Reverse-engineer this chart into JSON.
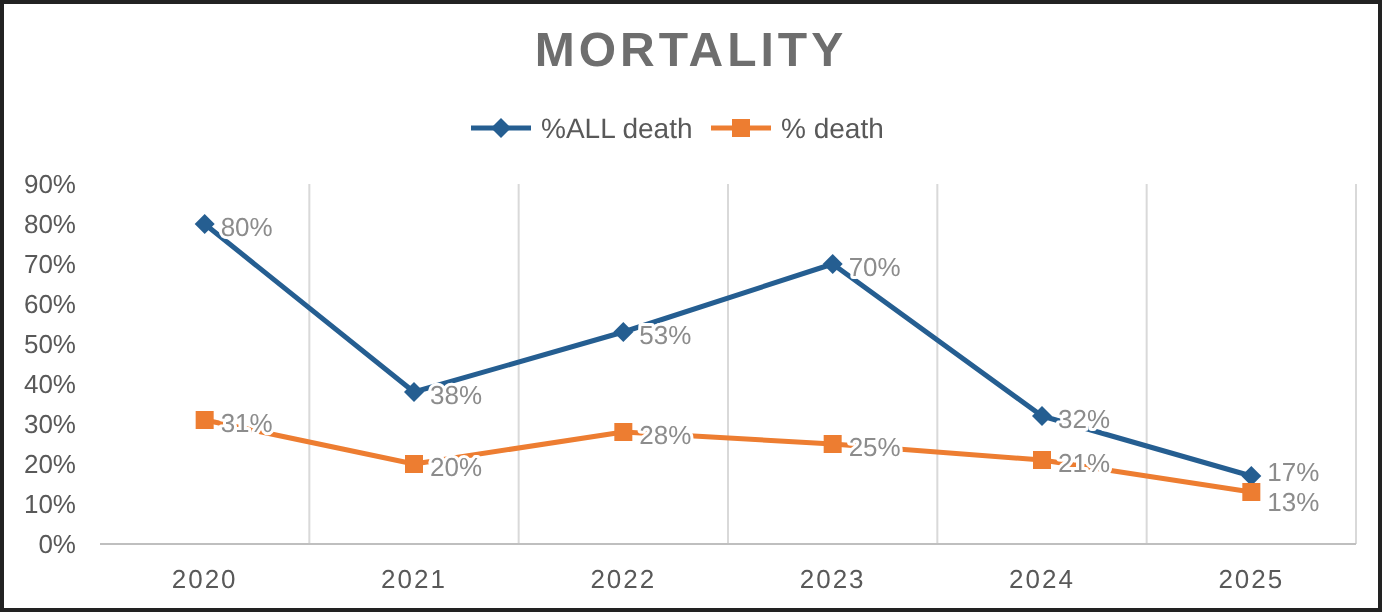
{
  "chart_data": {
    "type": "line",
    "title": "MORTALITY",
    "categories": [
      "2020",
      "2021",
      "2022",
      "2023",
      "2024",
      "2025"
    ],
    "series": [
      {
        "name": "%ALL death",
        "color": "#255e91",
        "marker": "diamond",
        "values": [
          80,
          38,
          53,
          70,
          32,
          17
        ],
        "value_labels": [
          "80%",
          "38%",
          "53%",
          "70%",
          "32%",
          "17%"
        ]
      },
      {
        "name": "% death",
        "color": "#ed7d31",
        "marker": "square",
        "values": [
          31,
          20,
          28,
          25,
          21,
          13
        ],
        "value_labels": [
          "31%",
          "20%",
          "28%",
          "25%",
          "21%",
          "13%"
        ]
      }
    ],
    "ylim": [
      0,
      90
    ],
    "yticks": [
      {
        "value": 0,
        "label": "0%"
      },
      {
        "value": 10,
        "label": "10%"
      },
      {
        "value": 20,
        "label": "20%"
      },
      {
        "value": 30,
        "label": "30%"
      },
      {
        "value": 40,
        "label": "40%"
      },
      {
        "value": 50,
        "label": "50%"
      },
      {
        "value": 60,
        "label": "60%"
      },
      {
        "value": 70,
        "label": "70%"
      },
      {
        "value": 80,
        "label": "80%"
      },
      {
        "value": 90,
        "label": "90%"
      }
    ],
    "grid": "x",
    "legend": "top"
  }
}
